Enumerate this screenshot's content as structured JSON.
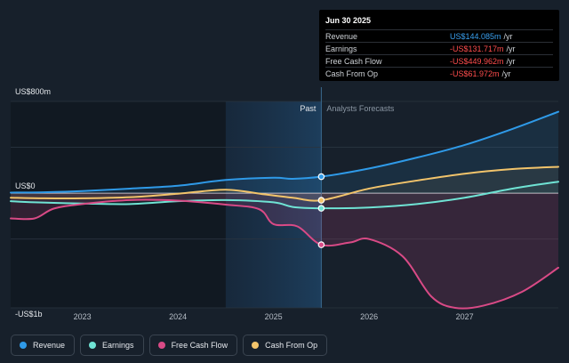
{
  "tooltip": {
    "date": "Jun 30 2025",
    "rows": [
      {
        "label": "Revenue",
        "value": "US$144.085m",
        "unit": "/yr",
        "color": "#3aa0f0"
      },
      {
        "label": "Earnings",
        "value": "-US$131.717m",
        "unit": "/yr",
        "color": "#ff4d4d"
      },
      {
        "label": "Free Cash Flow",
        "value": "-US$449.962m",
        "unit": "/yr",
        "color": "#ff4d4d"
      },
      {
        "label": "Cash From Op",
        "value": "-US$61.972m",
        "unit": "/yr",
        "color": "#ff4d4d"
      }
    ]
  },
  "legend": [
    {
      "label": "Revenue",
      "color": "#2f9ae8"
    },
    {
      "label": "Earnings",
      "color": "#6fe3d4"
    },
    {
      "label": "Free Cash Flow",
      "color": "#d94a86"
    },
    {
      "label": "Cash From Op",
      "color": "#f2c46b"
    }
  ],
  "chart_data": {
    "type": "line",
    "ylim": [
      -1000,
      800
    ],
    "y_tick_labels": [
      {
        "value": 800,
        "label": "US$800m"
      },
      {
        "value": 0,
        "label": "US$0"
      },
      {
        "value": -1000,
        "label": "-US$1b"
      }
    ],
    "xlim": [
      2022.25,
      2027.98
    ],
    "x_tick_labels": [
      {
        "value": 2023,
        "label": "2023"
      },
      {
        "value": 2024,
        "label": "2024"
      },
      {
        "value": 2025,
        "label": "2025"
      },
      {
        "value": 2026,
        "label": "2026"
      },
      {
        "value": 2027,
        "label": "2027"
      }
    ],
    "past_label": "Past",
    "forecast_label": "Analysts Forecasts",
    "highlight_start": 2024.5,
    "divider": 2025.5,
    "series": [
      {
        "name": "Revenue",
        "color": "#2f9ae8",
        "points": [
          [
            2022.25,
            5
          ],
          [
            2022.6,
            8
          ],
          [
            2023.0,
            18
          ],
          [
            2023.5,
            40
          ],
          [
            2024.0,
            65
          ],
          [
            2024.5,
            115
          ],
          [
            2025.0,
            135
          ],
          [
            2025.2,
            125
          ],
          [
            2025.5,
            144
          ],
          [
            2026.0,
            215
          ],
          [
            2026.5,
            310
          ],
          [
            2027.0,
            420
          ],
          [
            2027.5,
            560
          ],
          [
            2027.98,
            710
          ]
        ]
      },
      {
        "name": "Earnings",
        "color": "#6fe3d4",
        "points": [
          [
            2022.25,
            -70
          ],
          [
            2022.5,
            -80
          ],
          [
            2023.0,
            -90
          ],
          [
            2023.5,
            -95
          ],
          [
            2024.0,
            -70
          ],
          [
            2024.5,
            -60
          ],
          [
            2025.0,
            -80
          ],
          [
            2025.2,
            -120
          ],
          [
            2025.5,
            -132
          ],
          [
            2026.0,
            -125
          ],
          [
            2026.5,
            -95
          ],
          [
            2027.0,
            -40
          ],
          [
            2027.5,
            40
          ],
          [
            2027.98,
            100
          ]
        ]
      },
      {
        "name": "Free Cash Flow",
        "color": "#d94a86",
        "points": [
          [
            2022.25,
            -220
          ],
          [
            2022.5,
            -220
          ],
          [
            2022.7,
            -135
          ],
          [
            2023.0,
            -95
          ],
          [
            2023.5,
            -60
          ],
          [
            2024.0,
            -65
          ],
          [
            2024.5,
            -100
          ],
          [
            2024.85,
            -140
          ],
          [
            2025.0,
            -270
          ],
          [
            2025.25,
            -290
          ],
          [
            2025.5,
            -450
          ],
          [
            2025.8,
            -430
          ],
          [
            2026.0,
            -400
          ],
          [
            2026.35,
            -550
          ],
          [
            2026.65,
            -900
          ],
          [
            2026.9,
            -1000
          ],
          [
            2027.2,
            -980
          ],
          [
            2027.6,
            -860
          ],
          [
            2027.98,
            -650
          ]
        ]
      },
      {
        "name": "Cash From Op",
        "color": "#f2c46b",
        "points": [
          [
            2022.25,
            -40
          ],
          [
            2022.6,
            -45
          ],
          [
            2023.0,
            -45
          ],
          [
            2023.5,
            -35
          ],
          [
            2024.0,
            -5
          ],
          [
            2024.5,
            30
          ],
          [
            2024.9,
            -10
          ],
          [
            2025.2,
            -40
          ],
          [
            2025.5,
            -62
          ],
          [
            2026.0,
            40
          ],
          [
            2026.5,
            110
          ],
          [
            2027.0,
            170
          ],
          [
            2027.5,
            210
          ],
          [
            2027.98,
            230
          ]
        ]
      }
    ]
  }
}
